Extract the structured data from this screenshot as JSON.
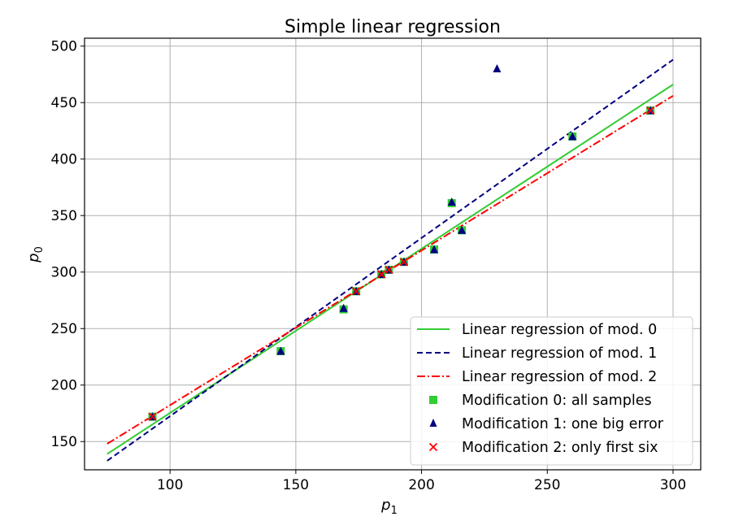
{
  "chart_data": {
    "type": "scatter",
    "title": "Simple linear regression",
    "xlabel": "p",
    "xlabel_sub": "1",
    "ylabel": "p",
    "ylabel_sub": "0",
    "xlim": [
      66,
      311
    ],
    "ylim": [
      125,
      507
    ],
    "xticks": [
      100,
      150,
      200,
      250,
      300
    ],
    "yticks": [
      150,
      200,
      250,
      300,
      350,
      400,
      450,
      500
    ],
    "grid": true,
    "legend_placement": "lower right",
    "lines": [
      {
        "name": "Linear regression of mod. 0",
        "color": "#33cc33",
        "style": "solid",
        "x": [
          75,
          300
        ],
        "y": [
          139,
          466
        ]
      },
      {
        "name": "Linear regression of mod. 1",
        "color": "#000080",
        "style": "dashed",
        "x": [
          75,
          300
        ],
        "y": [
          133,
          488
        ]
      },
      {
        "name": "Linear regression of mod. 2",
        "color": "#ff0000",
        "style": "dashdot",
        "x": [
          75,
          300
        ],
        "y": [
          148,
          456
        ]
      }
    ],
    "series": [
      {
        "name": "Modification 0: all samples",
        "marker": "square",
        "color": "#33cc33",
        "x": [
          93,
          144,
          169,
          174,
          184,
          187,
          193,
          205,
          212,
          216,
          260,
          291
        ],
        "y": [
          172,
          230,
          267,
          283,
          298,
          302,
          309,
          320,
          361,
          337,
          420,
          443
        ]
      },
      {
        "name": "Modification 1: one big error",
        "marker": "triangle",
        "color": "#000080",
        "x": [
          93,
          144,
          169,
          174,
          184,
          187,
          193,
          205,
          212,
          216,
          230,
          260,
          291
        ],
        "y": [
          172,
          230,
          268,
          283,
          298,
          302,
          309,
          320,
          362,
          337,
          480,
          420,
          443
        ]
      },
      {
        "name": "Modification 2: only first six",
        "marker": "cross",
        "color": "#ff0000",
        "x": [
          93,
          174,
          184,
          187,
          193,
          291
        ],
        "y": [
          172,
          283,
          298,
          302,
          309,
          443
        ]
      }
    ]
  }
}
